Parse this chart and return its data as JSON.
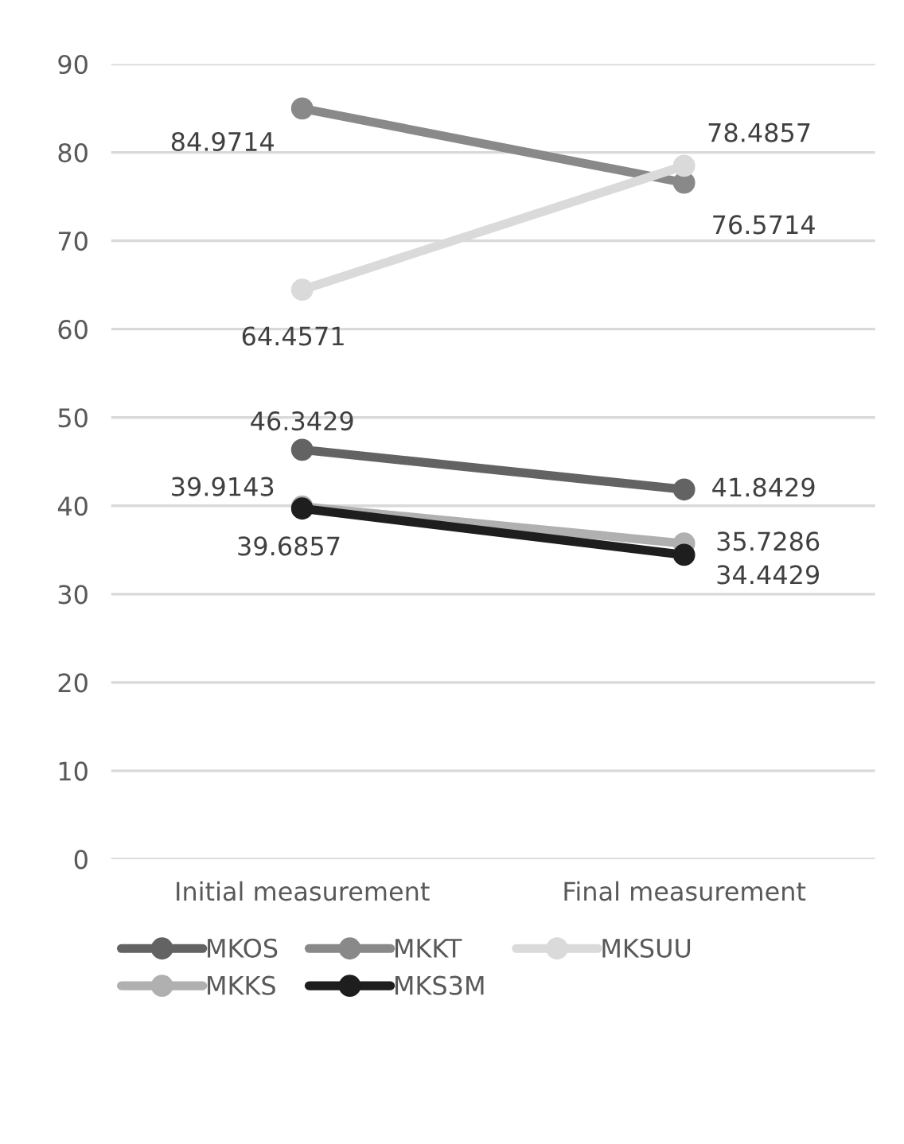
{
  "chart_data": {
    "type": "line",
    "categories": [
      "Initial measurement",
      "Final measurement"
    ],
    "series": [
      {
        "name": "MKOS",
        "color": "#636363",
        "values": [
          46.3429,
          41.8429
        ]
      },
      {
        "name": "MKKS",
        "color": "#b0b0b0",
        "values": [
          39.9143,
          35.7286
        ]
      },
      {
        "name": "MKKT",
        "color": "#898989",
        "values": [
          84.9714,
          76.5714
        ]
      },
      {
        "name": "MKS3M",
        "color": "#1e1e1e",
        "values": [
          39.6857,
          34.4429
        ]
      },
      {
        "name": "MKSUU",
        "color": "#dadada",
        "values": [
          64.4571,
          78.4857
        ]
      }
    ],
    "ylim": [
      0,
      90
    ],
    "yticks": [
      0,
      10,
      20,
      30,
      40,
      50,
      60,
      70,
      80,
      90
    ],
    "grid": "y",
    "legend": "bottom",
    "marker": "circle",
    "line_style": "solid",
    "data_labels": true
  }
}
